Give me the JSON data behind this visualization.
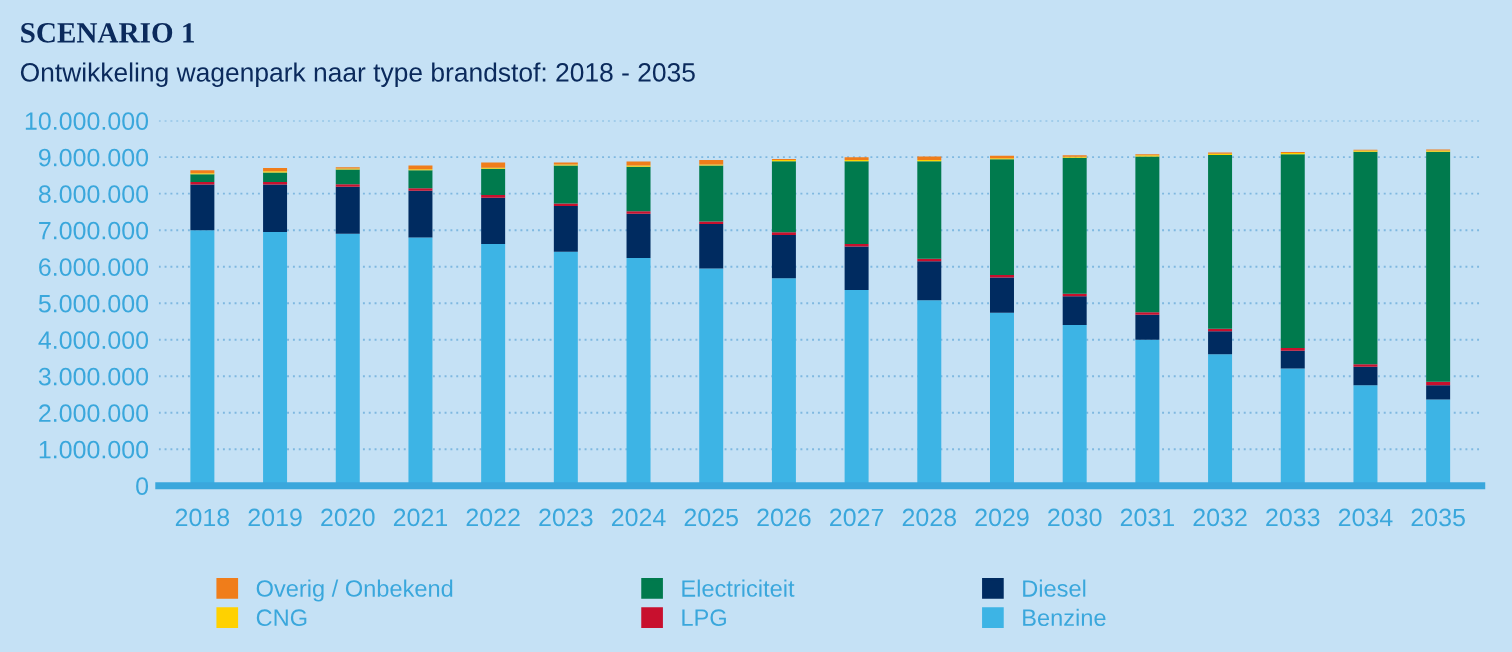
{
  "chart_data": {
    "type": "bar",
    "stacked": true,
    "title": "SCENARIO 1",
    "subtitle": "Ontwikkeling wagenpark naar type brandstof: 2018 - 2035",
    "categories": [
      "2018",
      "2019",
      "2020",
      "2021",
      "2022",
      "2023",
      "2024",
      "2025",
      "2026",
      "2027",
      "2028",
      "2029",
      "2030",
      "2031",
      "2032",
      "2033",
      "2034",
      "2035"
    ],
    "series": [
      {
        "name": "Benzine",
        "color": "#3db4e5",
        "values": [
          7000000,
          6950000,
          6900000,
          6800000,
          6620000,
          6410000,
          6240000,
          5950000,
          5680000,
          5360000,
          5080000,
          4740000,
          4400000,
          4000000,
          3600000,
          3210000,
          2750000,
          2360000
        ]
      },
      {
        "name": "Diesel",
        "color": "#002b60",
        "values": [
          1250000,
          1300000,
          1290000,
          1280000,
          1270000,
          1250000,
          1210000,
          1220000,
          1190000,
          1190000,
          1070000,
          960000,
          790000,
          680000,
          630000,
          490000,
          510000,
          390000
        ]
      },
      {
        "name": "LPG",
        "color": "#c8102e",
        "values": [
          70000,
          70000,
          70000,
          70000,
          70000,
          70000,
          70000,
          70000,
          70000,
          70000,
          70000,
          70000,
          70000,
          70000,
          70000,
          70000,
          70000,
          100000
        ]
      },
      {
        "name": "Electriciteit",
        "color": "#007a4d",
        "values": [
          210000,
          260000,
          400000,
          490000,
          720000,
          1040000,
          1220000,
          1530000,
          1950000,
          2270000,
          2670000,
          3170000,
          3720000,
          4270000,
          4760000,
          5310000,
          5820000,
          6300000
        ]
      },
      {
        "name": "CNG",
        "color": "#ffd100",
        "values": [
          30000,
          30000,
          30000,
          30000,
          30000,
          30000,
          30000,
          30000,
          30000,
          30000,
          30000,
          30000,
          30000,
          30000,
          30000,
          30000,
          30000,
          30000
        ]
      },
      {
        "name": "Overig / Onbekend",
        "color": "#f07d1a",
        "values": [
          80000,
          90000,
          30000,
          100000,
          140000,
          50000,
          110000,
          120000,
          30000,
          80000,
          100000,
          70000,
          40000,
          30000,
          40000,
          30000,
          20000,
          30000
        ]
      }
    ],
    "ylim": [
      0,
      10000000
    ],
    "yticks": [
      {
        "value": 0,
        "label": "0"
      },
      {
        "value": 1000000,
        "label": "1.000.000"
      },
      {
        "value": 2000000,
        "label": "2.000.000"
      },
      {
        "value": 3000000,
        "label": "3.000.000"
      },
      {
        "value": 4000000,
        "label": "4.000.000"
      },
      {
        "value": 5000000,
        "label": "5.000.000"
      },
      {
        "value": 6000000,
        "label": "6.000.000"
      },
      {
        "value": 7000000,
        "label": "7.000.000"
      },
      {
        "value": 8000000,
        "label": "8.000.000"
      },
      {
        "value": 9000000,
        "label": "9.000.000"
      },
      {
        "value": 10000000,
        "label": "10.000.000"
      }
    ],
    "grid": "y",
    "legend": "bottom"
  }
}
